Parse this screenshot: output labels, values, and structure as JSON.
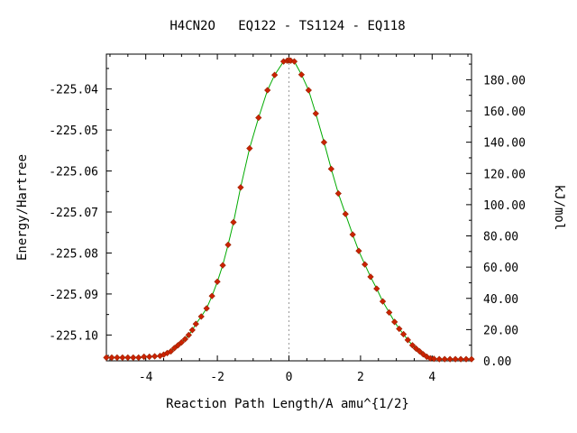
{
  "chart_data": {
    "type": "line",
    "title": "H4CN2O   EQ122 - TS1124 - EQ118",
    "xlabel": "Reaction Path Length/A amu^{1/2}",
    "ylabel_left": "Energy/Hartree",
    "ylabel_right": "kJ/mol",
    "xlim": [
      -5.1,
      5.1
    ],
    "ylim_left": [
      -225.1063,
      -225.0315
    ],
    "ylim_right": [
      0.0,
      196.4
    ],
    "x_ticks": [
      -4,
      -2,
      0,
      2,
      4
    ],
    "x_tick_labels": [
      "-4",
      "-2",
      "0",
      "2",
      "4"
    ],
    "y_left_ticks": [
      -225.04,
      -225.05,
      -225.06,
      -225.07,
      -225.08,
      -225.09,
      -225.1
    ],
    "y_left_tick_labels": [
      "-225.04",
      "-225.05",
      "-225.06",
      "-225.07",
      "-225.08",
      "-225.09",
      "-225.10"
    ],
    "y_right_ticks": [
      0,
      20,
      40,
      60,
      80,
      100,
      120,
      140,
      160,
      180
    ],
    "y_right_tick_labels": [
      "0.00",
      "20.00",
      "40.00",
      "60.00",
      "80.00",
      "100.00",
      "120.00",
      "140.00",
      "160.00",
      "180.00"
    ],
    "ts_marker_x": 0,
    "grid": false,
    "series": [
      {
        "line_color": "#00aa00",
        "marker_color": "#cc2200",
        "marker_shape": "diamond",
        "x": [
          -5.1,
          -4.95,
          -4.8,
          -4.65,
          -4.5,
          -4.35,
          -4.2,
          -4.05,
          -3.9,
          -3.75,
          -3.6,
          -3.5,
          -3.4,
          -3.3,
          -3.2,
          -3.1,
          -3.0,
          -2.9,
          -2.8,
          -2.7,
          -2.6,
          -2.45,
          -2.3,
          -2.15,
          -2.0,
          -1.85,
          -1.7,
          -1.55,
          -1.35,
          -1.1,
          -0.85,
          -0.6,
          -0.4,
          -0.15,
          -0.05,
          0.0,
          0.05,
          0.15,
          0.35,
          0.55,
          0.75,
          0.98,
          1.18,
          1.38,
          1.58,
          1.78,
          1.95,
          2.12,
          2.28,
          2.45,
          2.62,
          2.8,
          2.95,
          3.08,
          3.2,
          3.32,
          3.45,
          3.55,
          3.65,
          3.75,
          3.85,
          3.95,
          4.05,
          4.2,
          4.35,
          4.5,
          4.65,
          4.8,
          4.95,
          5.1
        ],
        "y": [
          -225.1055,
          -225.1055,
          -225.1055,
          -225.1055,
          -225.1055,
          -225.1055,
          -225.1055,
          -225.1053,
          -225.1053,
          -225.1052,
          -225.1051,
          -225.1048,
          -225.1044,
          -225.104,
          -225.1032,
          -225.1025,
          -225.1018,
          -225.101,
          -225.1,
          -225.0988,
          -225.0973,
          -225.0955,
          -225.0935,
          -225.0905,
          -225.087,
          -225.083,
          -225.078,
          -225.0725,
          -225.064,
          -225.0545,
          -225.047,
          -225.0403,
          -225.0366,
          -225.0333,
          -225.0331,
          -225.033,
          -225.0331,
          -225.0333,
          -225.0365,
          -225.0403,
          -225.046,
          -225.053,
          -225.0595,
          -225.0655,
          -225.0705,
          -225.0755,
          -225.0795,
          -225.0828,
          -225.0858,
          -225.0887,
          -225.0918,
          -225.0945,
          -225.0968,
          -225.0985,
          -225.0998,
          -225.1012,
          -225.1025,
          -225.1033,
          -225.104,
          -225.1047,
          -225.1053,
          -225.1057,
          -225.1058,
          -225.1059,
          -225.1059,
          -225.1059,
          -225.1059,
          -225.1059,
          -225.1059,
          -225.1059
        ]
      }
    ]
  }
}
